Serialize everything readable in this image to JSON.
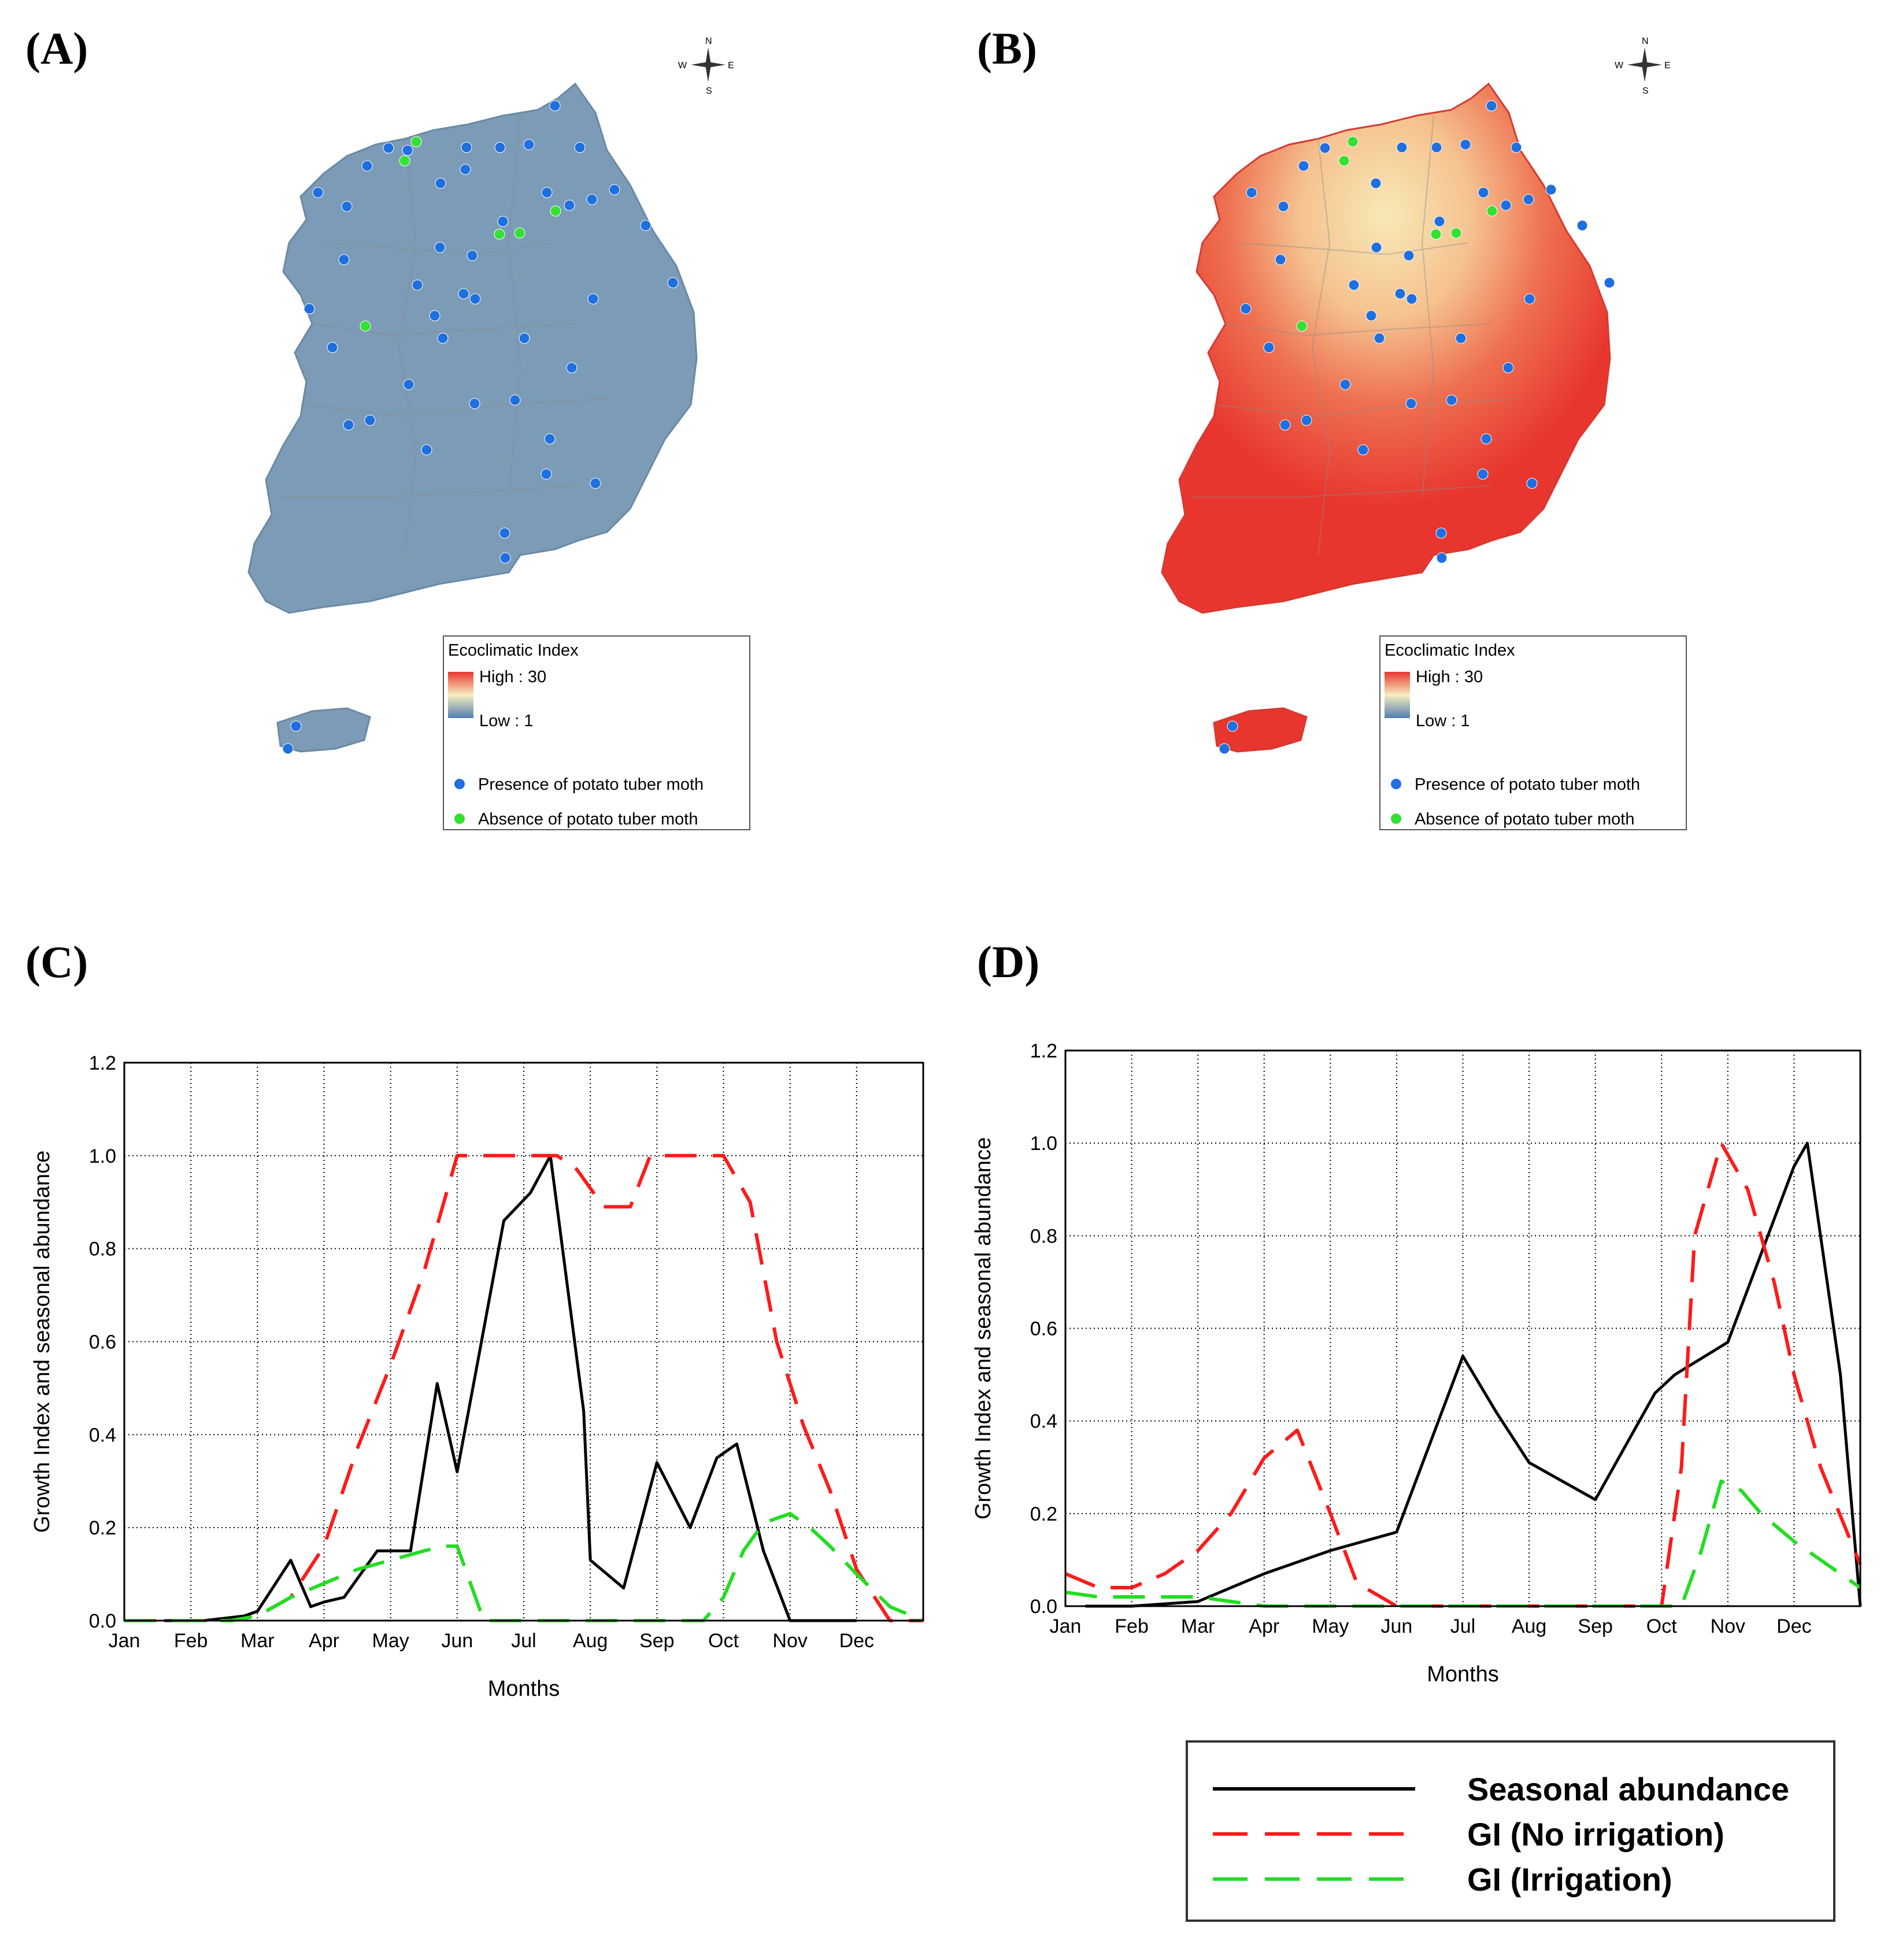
{
  "panels": {
    "a": "(A)",
    "b": "(B)",
    "c": "(C)",
    "d": "(D)"
  },
  "compass": {
    "n": "N",
    "s": "S",
    "e": "E",
    "w": "W"
  },
  "map_legend": {
    "title": "Ecoclimatic Index",
    "high": "High : 30",
    "low": "Low : 1",
    "presence": "Presence of potato tuber moth",
    "absence": "Absence of potato tuber moth"
  },
  "colors": {
    "presence": "#1e6fe0",
    "absence": "#33e033",
    "map_a": "#7b9bb6",
    "map_b_high": "#e8362e",
    "map_b_low": "#f6dfa8",
    "seasonal": "#000000",
    "gi_no_irrigation": "#ff1a1a",
    "gi_irrigation": "#22dd22"
  },
  "line_legend": {
    "seasonal": "Seasonal abundance",
    "no_irrigation": "GI (No irrigation)",
    "irrigation": "GI (Irrigation)"
  },
  "chart_data": [
    {
      "panel": "(C)",
      "type": "line",
      "xlabel": "Months",
      "ylabel": "Growth Index and seasonal abundance",
      "ylim": [
        0,
        1.2
      ],
      "yticks": [
        "0.0",
        "0.2",
        "0.4",
        "0.6",
        "0.8",
        "1.0",
        "1.2"
      ],
      "categories": [
        "Jan",
        "Feb",
        "Mar",
        "Apr",
        "May",
        "Jun",
        "Jul",
        "Aug",
        "Sep",
        "Oct",
        "Nov",
        "Dec"
      ],
      "xlim": [
        0,
        12
      ],
      "series": [
        {
          "name": "Seasonal abundance",
          "style": "solid",
          "x": [
            0.6,
            1.2,
            1.8,
            2.0,
            2.5,
            2.8,
            3.0,
            3.3,
            3.8,
            4.0,
            4.3,
            4.7,
            5.0,
            5.3,
            5.7,
            6.1,
            6.4,
            6.9,
            7.0,
            7.5,
            8.0,
            8.5,
            8.9,
            9.2,
            9.6,
            10.0,
            10.3,
            10.7,
            11.0
          ],
          "y": [
            0.0,
            0.0,
            0.01,
            0.02,
            0.13,
            0.03,
            0.04,
            0.05,
            0.15,
            0.15,
            0.15,
            0.51,
            0.32,
            0.55,
            0.86,
            0.92,
            1.0,
            0.45,
            0.13,
            0.07,
            0.34,
            0.2,
            0.35,
            0.38,
            0.15,
            0.0,
            0.0,
            0.0,
            0.0
          ]
        },
        {
          "name": "GI (No irrigation)",
          "style": "dash",
          "x": [
            0.0,
            1.0,
            1.6,
            2.0,
            2.5,
            3.0,
            3.5,
            4.0,
            4.5,
            5.0,
            5.6,
            6.0,
            6.5,
            6.8,
            7.2,
            7.6,
            7.9,
            8.2,
            8.6,
            9.0,
            9.4,
            9.8,
            10.2,
            10.6,
            11.0,
            11.5,
            12.0
          ],
          "y": [
            0.0,
            0.0,
            0.0,
            0.01,
            0.05,
            0.16,
            0.37,
            0.55,
            0.75,
            1.0,
            1.0,
            1.0,
            1.0,
            0.97,
            0.89,
            0.89,
            1.0,
            1.0,
            1.0,
            1.0,
            0.9,
            0.6,
            0.42,
            0.28,
            0.11,
            0.0,
            0.0
          ]
        },
        {
          "name": "GI (Irrigation)",
          "style": "dash",
          "x": [
            0.0,
            1.0,
            1.6,
            2.0,
            2.5,
            3.0,
            3.5,
            4.0,
            4.5,
            4.8,
            5.0,
            5.4,
            6.0,
            6.5,
            7.0,
            7.5,
            8.0,
            8.5,
            8.7,
            9.0,
            9.3,
            9.6,
            10.0,
            10.3,
            10.6,
            11.0,
            11.5,
            12.0
          ],
          "y": [
            0.0,
            0.0,
            0.0,
            0.01,
            0.05,
            0.08,
            0.11,
            0.13,
            0.15,
            0.16,
            0.16,
            0.0,
            0.0,
            0.0,
            0.0,
            0.0,
            0.0,
            0.0,
            0.0,
            0.05,
            0.15,
            0.21,
            0.23,
            0.2,
            0.16,
            0.1,
            0.03,
            0.0
          ]
        }
      ]
    },
    {
      "panel": "(D)",
      "type": "line",
      "xlabel": "Months",
      "ylabel": "Growth Index and seasonal abundance",
      "ylim": [
        0,
        1.2
      ],
      "yticks": [
        "0.0",
        "0.2",
        "0.4",
        "0.6",
        "0.8",
        "1.0",
        "1.2"
      ],
      "categories": [
        "Jan",
        "Feb",
        "Mar",
        "Apr",
        "May",
        "Jun",
        "Jul",
        "Aug",
        "Sep",
        "Oct",
        "Nov",
        "Dec"
      ],
      "xlim": [
        0,
        12
      ],
      "series": [
        {
          "name": "Seasonal abundance",
          "style": "solid",
          "x": [
            0.3,
            1.0,
            2.0,
            3.0,
            4.0,
            5.0,
            6.0,
            6.5,
            7.0,
            8.0,
            8.9,
            9.2,
            10.0,
            11.0,
            11.2,
            11.7,
            12.0
          ],
          "y": [
            0.0,
            0.0,
            0.01,
            0.07,
            0.12,
            0.16,
            0.54,
            0.42,
            0.31,
            0.23,
            0.46,
            0.5,
            0.57,
            0.95,
            1.0,
            0.5,
            0.0
          ]
        },
        {
          "name": "GI (No irrigation)",
          "style": "dash",
          "x": [
            0.0,
            0.5,
            1.0,
            1.5,
            2.0,
            2.5,
            3.0,
            3.5,
            4.0,
            4.4,
            5.0,
            6.0,
            7.0,
            8.0,
            8.5,
            9.0,
            9.3,
            9.5,
            9.9,
            10.3,
            10.7,
            11.0,
            11.4,
            12.0
          ],
          "y": [
            0.07,
            0.04,
            0.04,
            0.07,
            0.12,
            0.2,
            0.32,
            0.38,
            0.2,
            0.05,
            0.0,
            0.0,
            0.0,
            0.0,
            0.0,
            0.0,
            0.3,
            0.8,
            1.0,
            0.9,
            0.7,
            0.5,
            0.3,
            0.09
          ]
        },
        {
          "name": "GI (Irrigation)",
          "style": "dash",
          "x": [
            0.0,
            0.5,
            1.0,
            1.5,
            2.0,
            2.5,
            3.0,
            4.0,
            5.0,
            6.0,
            7.0,
            8.0,
            8.5,
            9.0,
            9.3,
            9.6,
            9.9,
            10.2,
            10.5,
            11.0,
            11.5,
            12.0
          ],
          "y": [
            0.03,
            0.02,
            0.02,
            0.02,
            0.02,
            0.01,
            0.0,
            0.0,
            0.0,
            0.0,
            0.0,
            0.0,
            0.0,
            0.0,
            0.0,
            0.12,
            0.27,
            0.25,
            0.2,
            0.14,
            0.09,
            0.04
          ]
        }
      ]
    }
  ]
}
